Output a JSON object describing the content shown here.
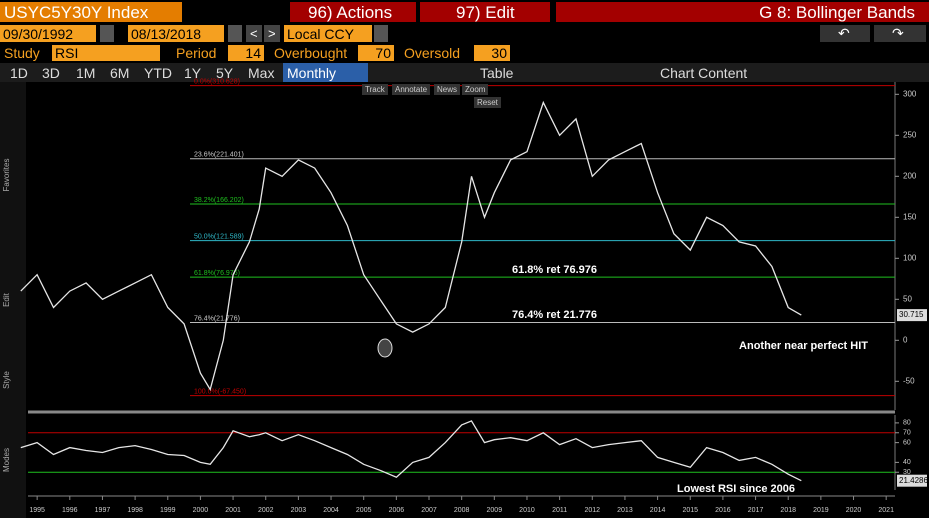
{
  "header": {
    "ticker": "USYC5Y30Y Index",
    "actions": "96) Actions",
    "edit": "97) Edit",
    "chart_name": "G 8: Bollinger Bands"
  },
  "range": {
    "start": "09/30/1992",
    "end": "08/13/2018",
    "currency": "Local CCY"
  },
  "study": {
    "label": "Study",
    "name": "RSI",
    "period_label": "Period",
    "period": 14,
    "overbought_label": "Overbought",
    "overbought": 70,
    "oversold_label": "Oversold",
    "oversold": 30
  },
  "tabs": [
    "1D",
    "3D",
    "1M",
    "6M",
    "YTD",
    "1Y",
    "5Y",
    "Max"
  ],
  "frequency": "Monthly",
  "table": "Table",
  "chart_content": "Chart Content",
  "tools": [
    "Track",
    "Annotate",
    "News",
    "Zoom",
    "Reset"
  ],
  "side_labels": [
    "Favorites",
    "Edit",
    "Style",
    "Modes"
  ],
  "chart_data": [
    {
      "type": "line",
      "color": "#e6e6e6",
      "x": [
        1994.5,
        1995,
        1995.5,
        1996,
        1996.5,
        1997,
        1997.5,
        1998,
        1998.5,
        1999,
        1999.5,
        2000,
        2000.3,
        2000.7,
        2001,
        2001.5,
        2001.8,
        2002,
        2002.5,
        2003,
        2003.5,
        2004,
        2004.5,
        2005,
        2005.5,
        2006,
        2006.5,
        2007,
        2007.5,
        2008,
        2008.3,
        2008.7,
        2009,
        2009.5,
        2010,
        2010.5,
        2011,
        2011.5,
        2012,
        2012.5,
        2013,
        2013.5,
        2014,
        2014.5,
        2015,
        2015.5,
        2016,
        2016.5,
        2017,
        2017.5,
        2018,
        2018.4
      ],
      "values": [
        60,
        80,
        40,
        60,
        70,
        50,
        60,
        70,
        80,
        40,
        20,
        -40,
        -60,
        0,
        80,
        120,
        160,
        210,
        200,
        220,
        210,
        180,
        140,
        80,
        50,
        20,
        10,
        20,
        40,
        120,
        200,
        150,
        180,
        220,
        230,
        290,
        250,
        270,
        200,
        220,
        230,
        240,
        180,
        130,
        110,
        150,
        140,
        120,
        115,
        90,
        40,
        30.715
      ],
      "xlim": [
        1994.72,
        2021.27
      ],
      "xticks": [
        1995,
        1996,
        1997,
        1998,
        1999,
        2000,
        2001,
        2002,
        2003,
        2004,
        2005,
        2006,
        2007,
        2008,
        2009,
        2010,
        2011,
        2012,
        2013,
        2014,
        2015,
        2016,
        2017,
        2018,
        2019,
        2020,
        2021
      ],
      "ylim": [
        -85,
        315
      ],
      "yticks": [
        -50,
        0,
        50,
        100,
        150,
        200,
        250,
        300
      ],
      "levels": [
        {
          "value": 310.628,
          "label": "0.0%(310.628)",
          "color": "#c00000"
        },
        {
          "value": 221.401,
          "label": "23.6%(221.401)",
          "color": "#bbbbbb"
        },
        {
          "value": 166.202,
          "label": "38.2%(166.202)",
          "color": "#1fbf1f"
        },
        {
          "value": 121.589,
          "label": "50.0%(121.589)",
          "color": "#2fb8c8"
        },
        {
          "value": 76.976,
          "label": "61.8%(76.976)",
          "color": "#1fbf1f"
        },
        {
          "value": 21.776,
          "label": "76.4%(21.776)",
          "color": "#bbbbbb"
        },
        {
          "value": -67.45,
          "label": "100.0%(-67.450)",
          "color": "#c00000"
        }
      ],
      "annotations": [
        "61.8% ret 76.976",
        "76.4% ret 21.776",
        "Another near perfect HIT"
      ]
    },
    {
      "type": "line",
      "color": "#e6e6e6",
      "x": [
        1994.5,
        1995,
        1995.5,
        1996,
        1996.5,
        1997,
        1997.5,
        1998,
        1998.5,
        1999,
        1999.5,
        2000,
        2000.3,
        2000.7,
        2001,
        2001.5,
        2001.8,
        2002,
        2002.5,
        2003,
        2003.5,
        2004,
        2004.5,
        2005,
        2005.5,
        2006,
        2006.5,
        2007,
        2007.5,
        2008,
        2008.3,
        2008.7,
        2009,
        2009.5,
        2010,
        2010.5,
        2011,
        2011.5,
        2012,
        2012.5,
        2013,
        2013.5,
        2014,
        2014.5,
        2015,
        2015.5,
        2016,
        2016.5,
        2017,
        2017.5,
        2018,
        2018.4
      ],
      "values": [
        55,
        60,
        48,
        55,
        52,
        50,
        55,
        57,
        53,
        48,
        47,
        40,
        38,
        55,
        72,
        66,
        68,
        70,
        62,
        68,
        62,
        55,
        48,
        38,
        32,
        25,
        40,
        45,
        60,
        78,
        82,
        60,
        63,
        65,
        62,
        70,
        58,
        64,
        55,
        58,
        60,
        62,
        45,
        40,
        35,
        55,
        50,
        42,
        45,
        38,
        28,
        21.4286
      ],
      "ylim": [
        12,
        88
      ],
      "yticks": [
        30,
        40,
        60,
        70,
        80
      ],
      "annotations": [
        "Lowest RSI since 2006"
      ]
    }
  ]
}
